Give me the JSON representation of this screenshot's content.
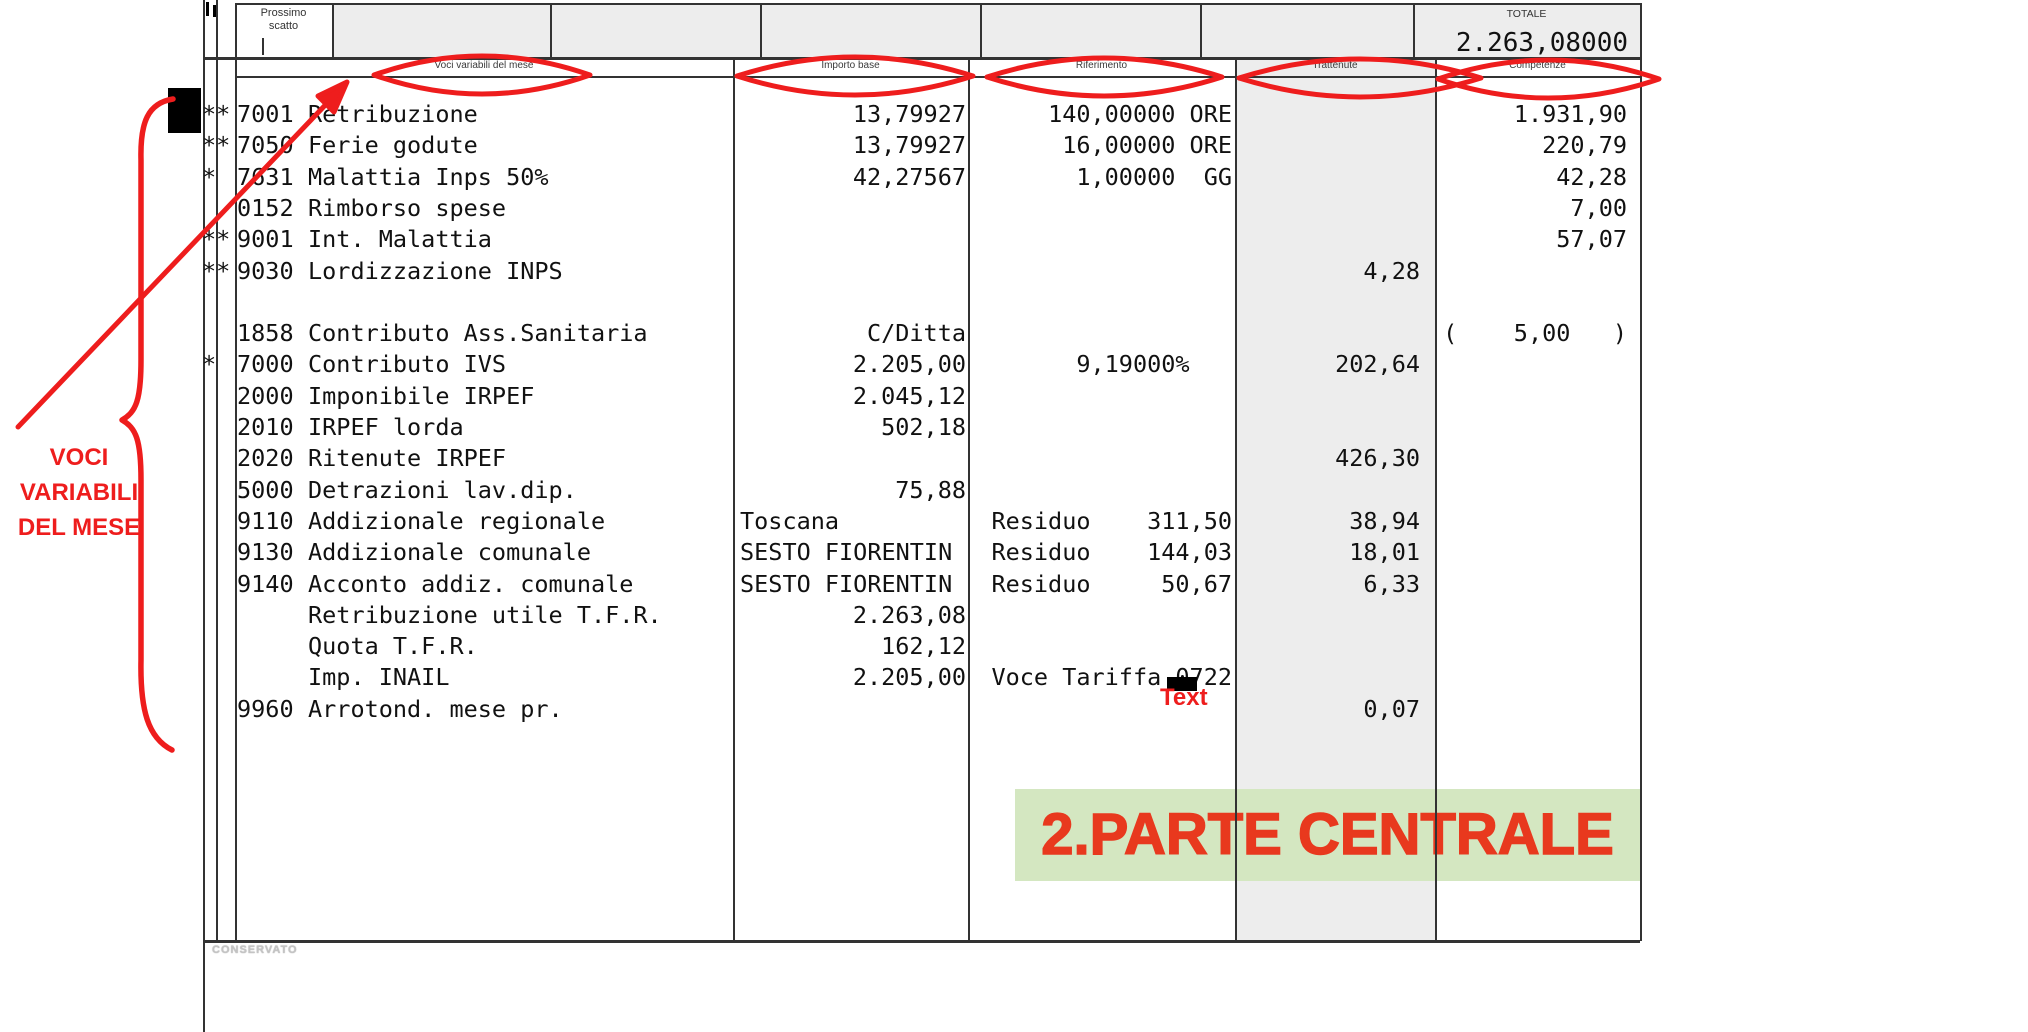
{
  "top_strip": {
    "prossimo_scatto_line1": "Prossimo",
    "prossimo_scatto_line2": "scatto",
    "totale_label": "TOTALE",
    "totale_value": "2.263,08000"
  },
  "header": {
    "columns": [
      "Voci variabili del mese",
      "Importo base",
      "Riferimento",
      "Trattenute",
      "Competenze"
    ]
  },
  "rows": [
    {
      "marks": "**",
      "code": "7001",
      "desc": "Retribuzione",
      "importo": "13,79927",
      "riferimento": "140,00000 ORE",
      "competenze": "1.931,90"
    },
    {
      "marks": "**",
      "code": "7050",
      "desc": "Ferie godute",
      "importo": "13,79927",
      "riferimento": " 16,00000 ORE",
      "competenze": "220,79"
    },
    {
      "marks": "*",
      "code": "7631",
      "desc": "Malattia Inps 50%",
      "importo": "42,27567",
      "riferimento": "  1,00000  GG",
      "competenze": "42,28"
    },
    {
      "code": "0152",
      "desc": "Rimborso spese",
      "competenze": "7,00"
    },
    {
      "marks": "**",
      "code": "9001",
      "desc": "Int. Malattia",
      "competenze": "57,07"
    },
    {
      "marks": "**",
      "code": "9030",
      "desc": "Lordizzazione INPS",
      "trattenute": "4,28"
    },
    {},
    {
      "code": "1858",
      "desc": "Contributo Ass.Sanitaria",
      "importo": "C/Ditta",
      "competenze": "(    5,00   )"
    },
    {
      "marks": "*",
      "code": "7000",
      "desc": "Contributo IVS",
      "importo": "2.205,00",
      "riferimento": "9,19000%   ",
      "trattenute": "202,64"
    },
    {
      "code": "2000",
      "desc": "Imponibile IRPEF",
      "importo": "2.045,12"
    },
    {
      "code": "2010",
      "desc": "IRPEF lorda",
      "importo": "502,18"
    },
    {
      "code": "2020",
      "desc": "Ritenute IRPEF",
      "trattenute": "426,30"
    },
    {
      "code": "5000",
      "desc": "Detrazioni lav.dip.",
      "importo": "75,88"
    },
    {
      "code": "9110",
      "desc": "Addizionale regionale",
      "localita": "Toscana",
      "riferimento": "Residuo    311,50",
      "trattenute": "38,94"
    },
    {
      "code": "9130",
      "desc": "Addizionale comunale",
      "localita": "SESTO FIORENTIN",
      "riferimento": "Residuo    144,03",
      "trattenute": "18,01"
    },
    {
      "code": "9140",
      "desc": "Acconto addiz. comunale",
      "localita": "SESTO FIORENTIN",
      "riferimento": "Residuo     50,67",
      "trattenute": "6,33"
    },
    {
      "desc": "Retribuzione utile T.F.R.",
      "importo": "2.263,08"
    },
    {
      "desc": "Quota T.F.R.",
      "importo": "162,12"
    },
    {
      "desc": "Imp. INAIL",
      "importo": "2.205,00",
      "riferimento": "Voce Tariffa 0722"
    },
    {
      "code": "9960",
      "desc": "Arrotond. mese pr.",
      "trattenute": "0,07"
    }
  ],
  "footer": {
    "conservato": "CONSERVATO"
  },
  "annotations": {
    "voci_lines": [
      "VOCI",
      "VARIABILI",
      "DEL MESE"
    ],
    "text_label": "Text",
    "banner_text": "2.PARTE CENTRALE",
    "colors": {
      "annotation_red": "#ee1d1d",
      "banner_text_red": "#e8391e",
      "banner_green": "#d4e7c1",
      "shaded_column_gray": "#ededed"
    }
  }
}
